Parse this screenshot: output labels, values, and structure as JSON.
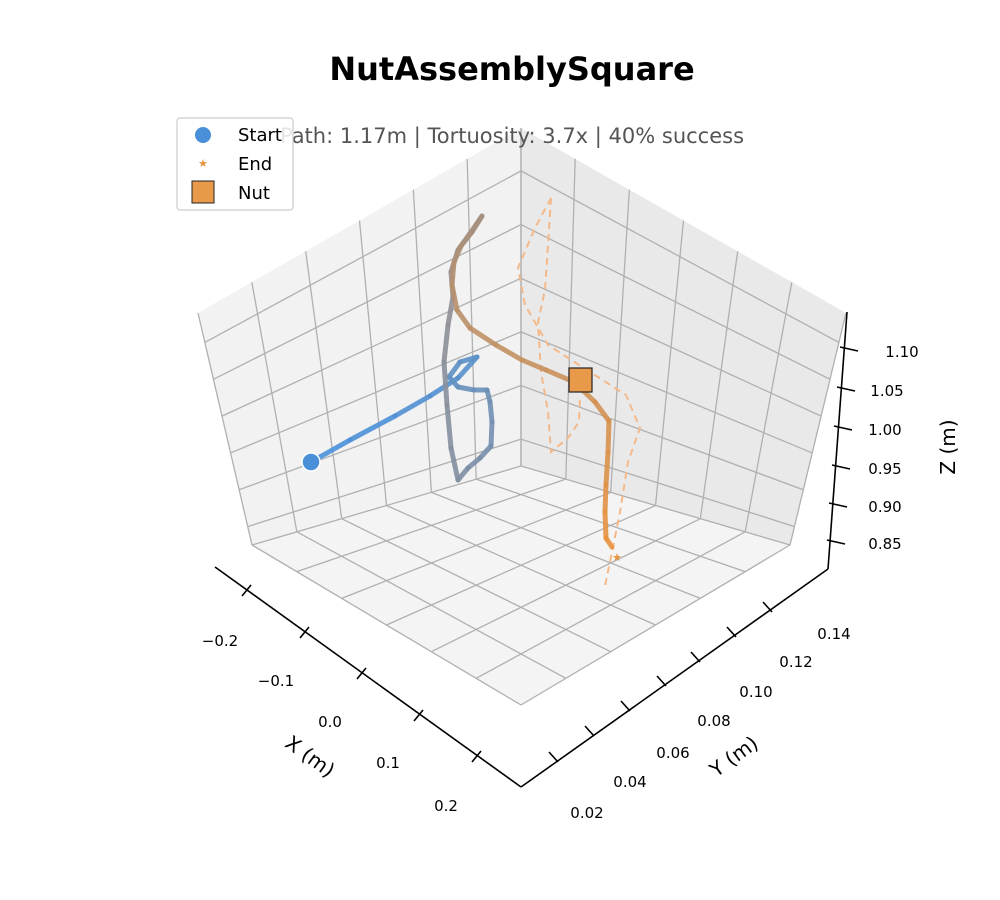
{
  "chart_data": {
    "type": "line3d",
    "title": "NutAssemblySquare",
    "subtitle": "Path: 1.17m  |  Tortuosity: 3.7x  |  40% success",
    "xlabel": "X (m)",
    "ylabel": "Y (m)",
    "zlabel": "Z (m)",
    "x_ticks": [
      "−0.2",
      "−0.1",
      "0.0",
      "0.1",
      "0.2"
    ],
    "y_ticks": [
      "0.02",
      "0.04",
      "0.06",
      "0.08",
      "0.10",
      "0.12",
      "0.14"
    ],
    "z_ticks": [
      "0.85",
      "0.90",
      "0.95",
      "1.00",
      "1.05",
      "1.10"
    ],
    "grid": true,
    "legend": {
      "position": "top-left",
      "entries": [
        {
          "label": "Start",
          "marker": "circle",
          "color": "#4a90d9"
        },
        {
          "label": "End",
          "marker": "star",
          "color": "#e8923e"
        },
        {
          "label": "Nut",
          "marker": "square",
          "color": "#e8994a"
        }
      ]
    },
    "colors": {
      "start": "#4a90d9",
      "mid": "#8a8f99",
      "end": "#e8923e",
      "ghost": "#f4b98a",
      "nut": "#e8994a"
    }
  }
}
